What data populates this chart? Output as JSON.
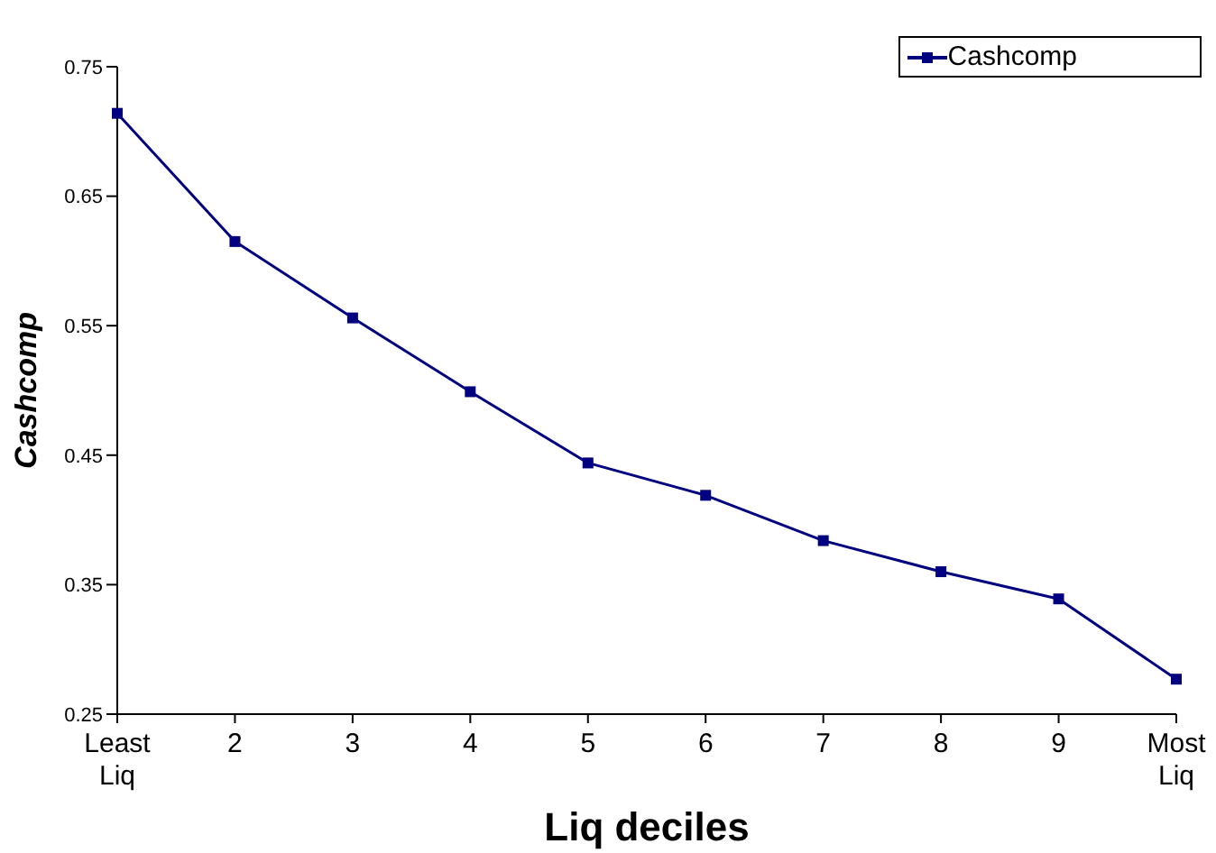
{
  "chart_data": {
    "type": "line",
    "xlabel": "Liq deciles",
    "ylabel": "Cashcomp",
    "categories": [
      "Least\nLiq",
      "2",
      "3",
      "4",
      "5",
      "6",
      "7",
      "8",
      "9",
      "Most\nLiq"
    ],
    "series": [
      {
        "name": "Cashcomp",
        "color": "#000080",
        "values": [
          0.714,
          0.615,
          0.556,
          0.499,
          0.444,
          0.419,
          0.384,
          0.36,
          0.339,
          0.277
        ]
      }
    ],
    "ylim": [
      0.25,
      0.75
    ],
    "yticks": [
      0.25,
      0.35,
      0.45,
      0.55,
      0.65,
      0.75
    ],
    "grid": false,
    "legend": "top right",
    "marker": "square",
    "line_style": "solid"
  }
}
